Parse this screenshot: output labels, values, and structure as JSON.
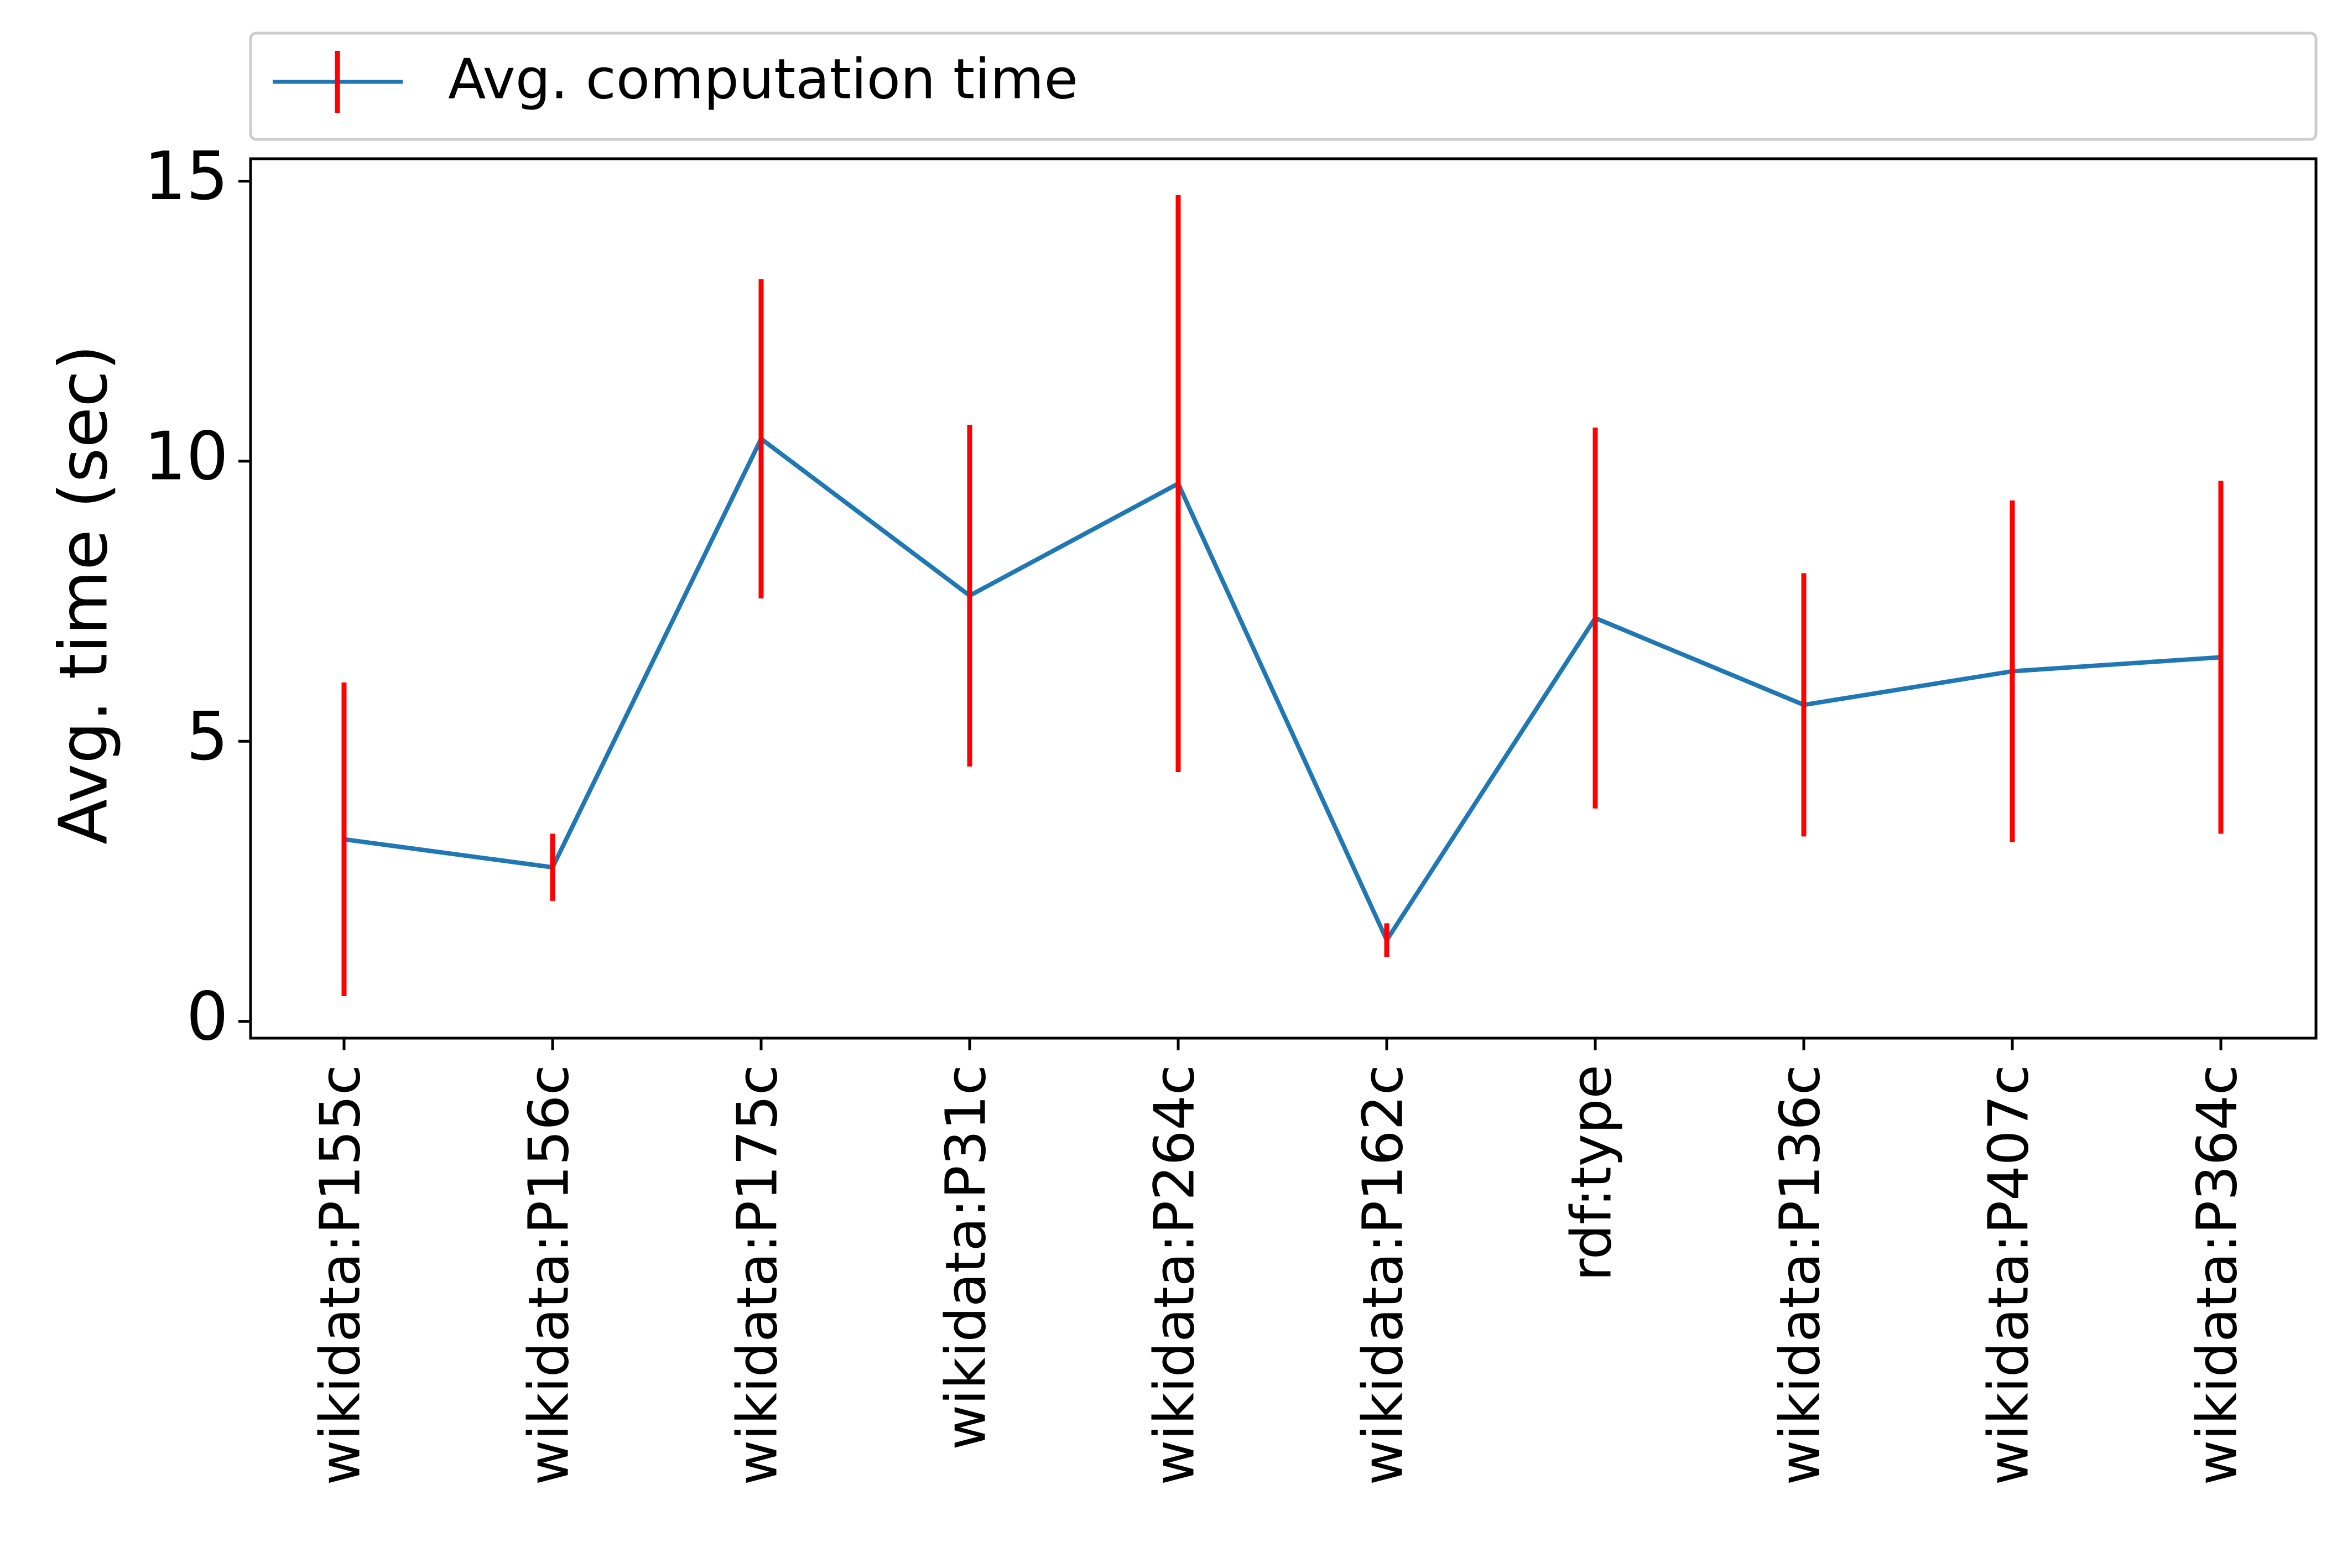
{
  "chart_data": {
    "type": "line",
    "ylabel": "Avg. time (sec)",
    "xlabel": "",
    "ylim": [
      -0.3,
      15.4
    ],
    "yticks": [
      0,
      5,
      10,
      15
    ],
    "grid": false,
    "legend_position": "top, above plot",
    "categories": [
      "wikidata:P155c",
      "wikidata:P156c",
      "wikidata:P175c",
      "wikidata:P31c",
      "wikidata:P264c",
      "wikidata:P162c",
      "rdf:type",
      "wikidata:P136c",
      "wikidata:P407c",
      "wikidata:P364c"
    ],
    "series": [
      {
        "name": "Avg. computation time",
        "color": "#1f77b4",
        "error_color": "#ff0000",
        "values": [
          3.25,
          2.75,
          10.4,
          7.6,
          9.6,
          1.45,
          7.2,
          5.65,
          6.25,
          6.5
        ],
        "errors": [
          2.8,
          0.6,
          2.85,
          3.05,
          5.15,
          0.3,
          3.4,
          2.35,
          3.05,
          3.15
        ]
      }
    ]
  }
}
